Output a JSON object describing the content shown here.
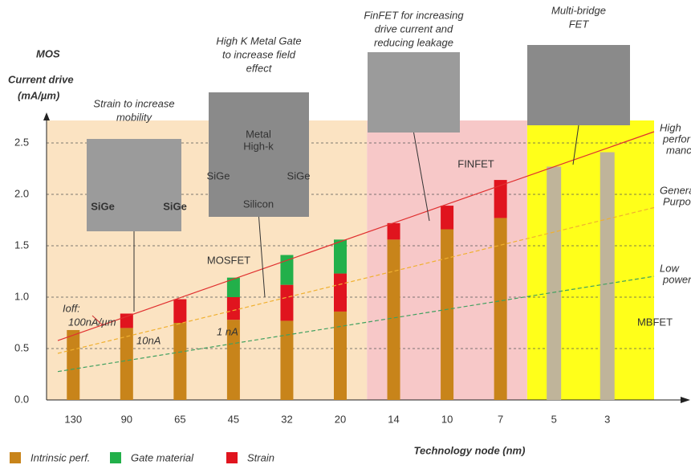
{
  "chart_data": {
    "type": "bar",
    "stacked": true,
    "y_title_lines": [
      "MOS",
      "Current drive",
      "(mA/µm)"
    ],
    "x_title": "Technology node (nm)",
    "categories": [
      "130",
      "90",
      "65",
      "45",
      "32",
      "20",
      "14",
      "10",
      "7",
      "5",
      "3"
    ],
    "series": [
      {
        "name": "Intrinsic perf.",
        "color": "#c8841a",
        "values": [
          0.68,
          0.7,
          0.75,
          0.78,
          0.77,
          0.86,
          1.56,
          1.66,
          1.77,
          0,
          0
        ]
      },
      {
        "name": "Strain",
        "color": "#e0141e",
        "values": [
          0,
          0.14,
          0.23,
          0.22,
          0.35,
          0.37,
          0.16,
          0.23,
          0.37,
          0,
          0
        ]
      },
      {
        "name": "Gate material",
        "color": "#22b04a",
        "values": [
          0,
          0,
          0,
          0.19,
          0.29,
          0.33,
          0,
          0,
          0,
          0,
          0
        ]
      },
      {
        "color": "#bfb49a",
        "values": [
          0,
          0,
          0,
          0,
          0,
          0,
          0,
          0,
          0,
          2.27,
          2.41
        ]
      }
    ],
    "legend_order": [
      0,
      2,
      1
    ],
    "ylim": [
      0,
      2.5
    ],
    "yticks": [
      {
        "value": 0,
        "label": "0.0"
      },
      0.5,
      {
        "value": 1,
        "label": "1.0"
      },
      1.5,
      {
        "value": 2,
        "label": "2.0"
      },
      2.5
    ],
    "grid": true,
    "regions": [
      {
        "label": "MOSFET",
        "color": "#fbe3c2"
      },
      {
        "label": "FINFET",
        "color": "#f7c8c8"
      },
      {
        "label": "MBFET",
        "color": "#ffff1a"
      }
    ],
    "trend_lines": [
      {
        "label_lines": [
          "High",
          "perfor",
          "mance"
        ],
        "color": "#e03030",
        "dash": false,
        "values": [
          0.63,
          2.45
        ]
      },
      {
        "label_lines": [
          "General",
          "Purpose"
        ],
        "color": "#f0b030",
        "dash": true,
        "values": [
          0.49,
          1.76
        ]
      },
      {
        "label_lines": [
          "Low",
          "power"
        ],
        "color": "#40a060",
        "dash": true,
        "values": [
          0.3,
          1.13
        ]
      }
    ],
    "annotations": [
      "Ioff:",
      "100nA/µm",
      "10nA",
      "1 nA"
    ],
    "captions": [
      {
        "lines": [
          "Strain to increase",
          "mobility"
        ],
        "inner": [
          "SiGe",
          "SiGe"
        ]
      },
      {
        "lines": [
          "High K Metal Gate",
          "to increase field",
          "effect"
        ],
        "inner": [
          "Metal",
          "High-k",
          "SiGe",
          "SiGe",
          "Silicon"
        ]
      },
      {
        "lines": [
          "FinFET for increasing",
          "drive current and",
          "reducing leakage"
        ],
        "inner": []
      },
      {
        "lines": [
          "Multi-bridge",
          "FET"
        ],
        "inner": []
      }
    ]
  }
}
